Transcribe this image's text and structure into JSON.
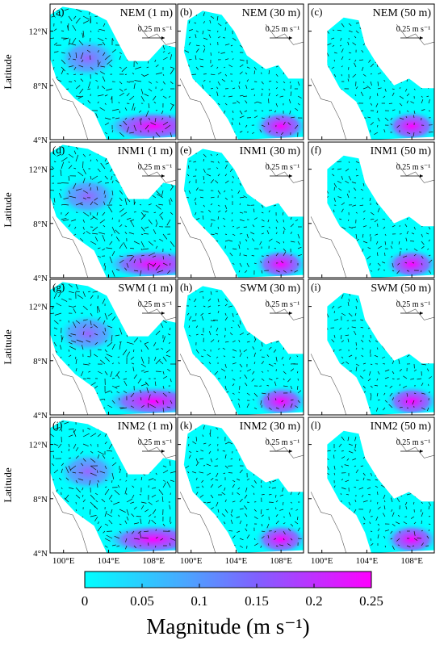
{
  "panels": [
    {
      "label": "(a)",
      "title": "NEM (1 m)"
    },
    {
      "label": "(b)",
      "title": "NEM (30 m)"
    },
    {
      "label": "(c)",
      "title": "NEM (50 m)"
    },
    {
      "label": "(d)",
      "title": "INM1 (1 m)"
    },
    {
      "label": "(e)",
      "title": "INM1 (30 m)"
    },
    {
      "label": "(f)",
      "title": "INM1 (50 m)"
    },
    {
      "label": "(g)",
      "title": "SWM (1 m)"
    },
    {
      "label": "(h)",
      "title": "SWM (30 m)"
    },
    {
      "label": "(i)",
      "title": "SWM (50 m)"
    },
    {
      "label": "(j)",
      "title": "INM2 (1 m)"
    },
    {
      "label": "(k)",
      "title": "INM2 (30 m)"
    },
    {
      "label": "(l)",
      "title": "INM2 (50 m)"
    }
  ],
  "scale_label": "0.25 m s⁻¹",
  "axes": {
    "y_label": "Latitude",
    "xlim": [
      98.8,
      110
    ],
    "ylim": [
      4,
      14
    ],
    "xticks": [
      {
        "value": 100,
        "label": "100°E"
      },
      {
        "value": 104,
        "label": "104°E"
      },
      {
        "value": 108,
        "label": "108°E"
      }
    ],
    "yticks": [
      {
        "value": 4,
        "label": "4°N"
      },
      {
        "value": 8,
        "label": "8°N"
      },
      {
        "value": 12,
        "label": "12°N"
      }
    ]
  },
  "colorbar": {
    "label": "Magnitude (m s⁻¹)",
    "lim": [
      0,
      0.25
    ],
    "ticks": [
      0,
      0.05,
      0.1,
      0.15,
      0.2,
      0.25
    ]
  }
}
